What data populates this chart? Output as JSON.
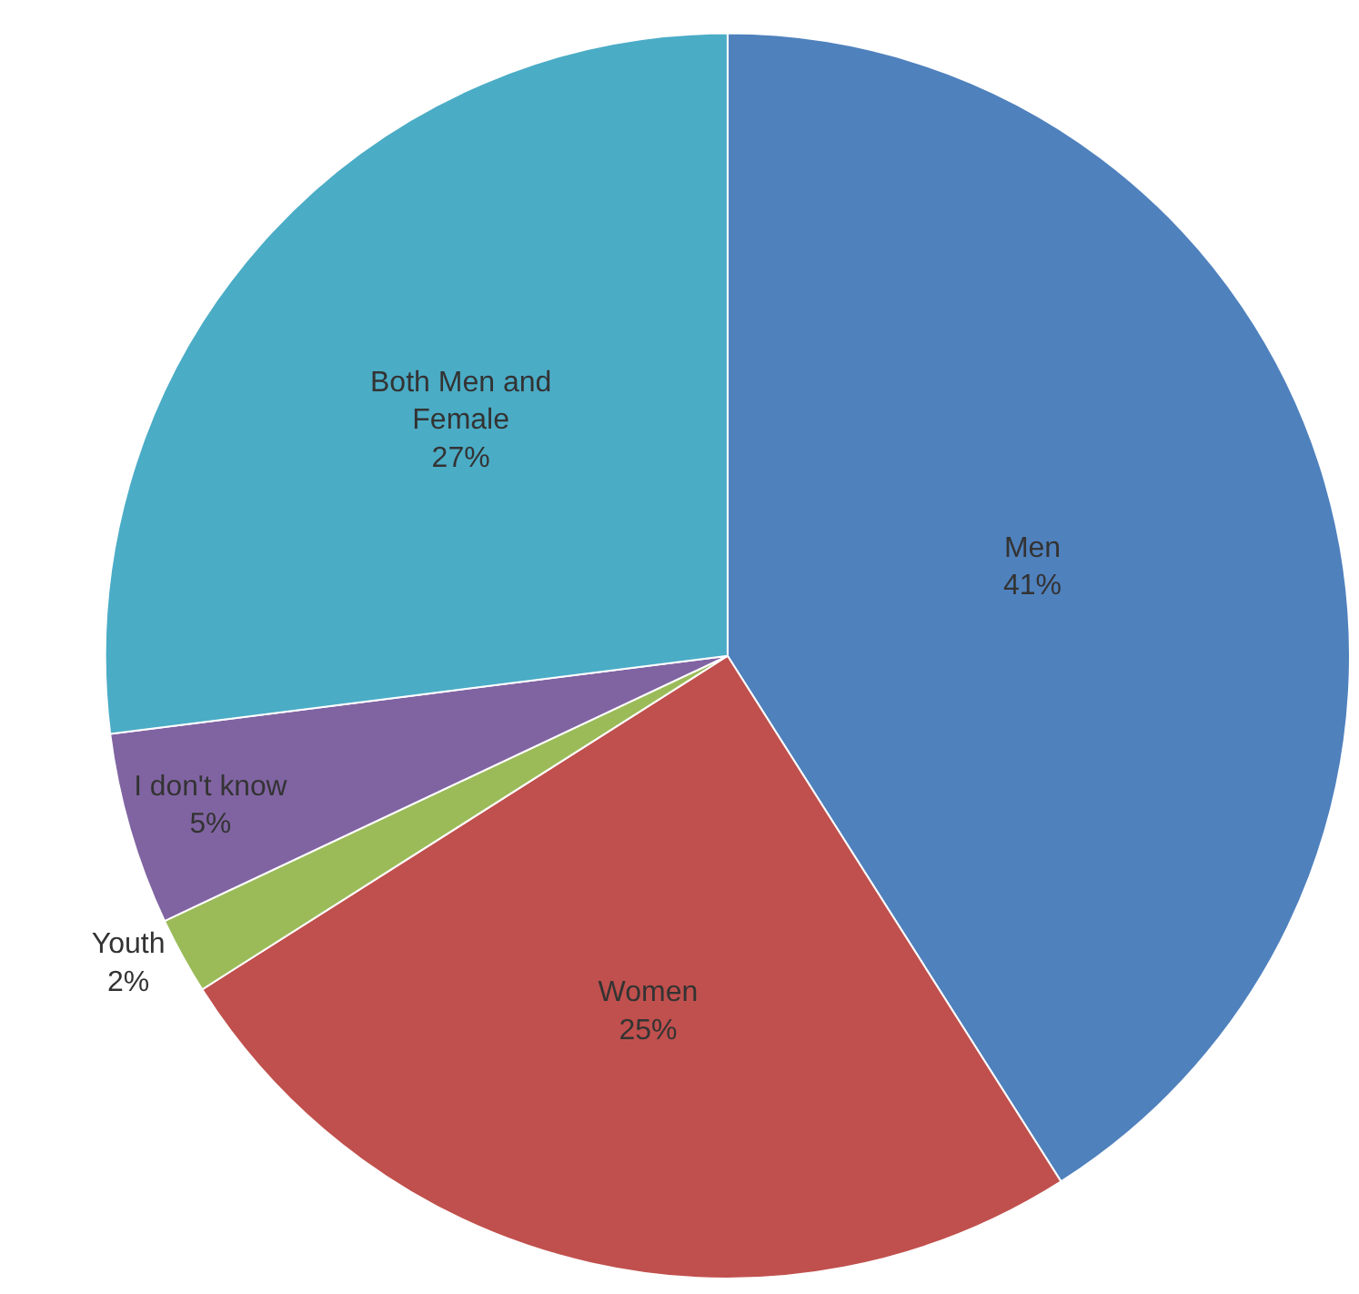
{
  "chart_data": {
    "type": "pie",
    "categories": [
      "Men",
      "Women",
      "Youth",
      "I don't know",
      "Both Men and Female"
    ],
    "values": [
      41,
      25,
      2,
      5,
      27
    ],
    "value_labels": [
      "41%",
      "25%",
      "2%",
      "5%",
      "27%"
    ],
    "colors": [
      "#4f81bd",
      "#c0504d",
      "#9bbb59",
      "#8064a2",
      "#4bacc6"
    ],
    "legend": false
  }
}
